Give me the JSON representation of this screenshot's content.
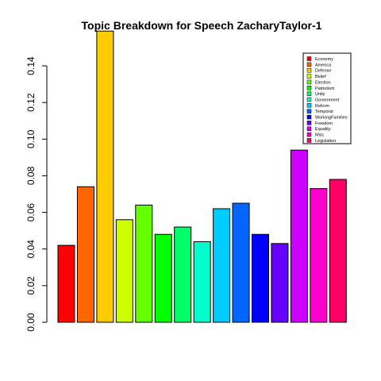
{
  "chart_data": {
    "type": "bar",
    "title": "Topic Breakdown for Speech ZacharyTaylor-1",
    "xlabel": "",
    "ylabel": "",
    "ylim": [
      0,
      0.16
    ],
    "yticks": [
      0.0,
      0.02,
      0.04,
      0.06,
      0.08,
      0.1,
      0.12,
      0.14
    ],
    "ytick_labels": [
      "0.00",
      "0.02",
      "0.04",
      "0.06",
      "0.08",
      "0.10",
      "0.12",
      "0.14"
    ],
    "grid": false,
    "legend_position": "top-right",
    "categories": [
      "Economy",
      "America",
      "Defense",
      "Belief",
      "Election",
      "Patriotism",
      "Unity",
      "Government",
      "Reform",
      "Temporal",
      "WorkingFamilies",
      "Freedom",
      "Equality",
      "Misc",
      "Legislation"
    ],
    "values": [
      0.042,
      0.074,
      0.159,
      0.056,
      0.064,
      0.048,
      0.052,
      0.044,
      0.062,
      0.065,
      0.048,
      0.043,
      0.094,
      0.073,
      0.078
    ],
    "colors": [
      "#FF0000",
      "#FF6600",
      "#FFCC00",
      "#CCFF00",
      "#66FF00",
      "#00FF00",
      "#00FF66",
      "#00FFCC",
      "#00CCFF",
      "#0066FF",
      "#0000FF",
      "#6600FF",
      "#CC00FF",
      "#FF00CC",
      "#FF0066"
    ]
  }
}
